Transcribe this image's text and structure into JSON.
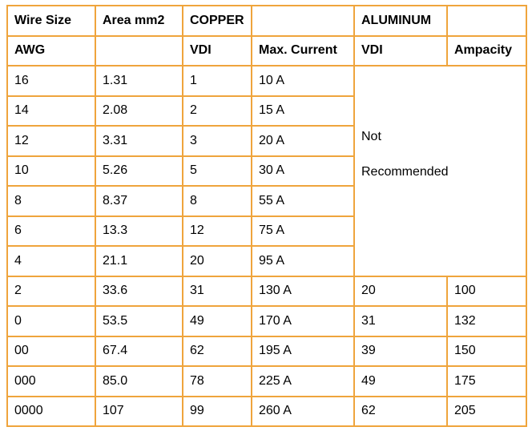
{
  "colors": {
    "border_color": "#EFA43C",
    "not_recommended_bg": "#FBCB9C",
    "text_color": "#000000",
    "page_bg": "#FFFFFF"
  },
  "table": {
    "headers": {
      "row1": [
        "Wire Size",
        "Area mm2",
        "COPPER",
        "",
        "ALUMINUM",
        ""
      ],
      "row2": [
        "AWG",
        "",
        "VDI",
        "Max. Current",
        "VDI",
        "Ampacity"
      ]
    },
    "not_recommended": {
      "line1": "Not",
      "line2": "Recommended"
    },
    "rows": [
      [
        "16",
        "1.31",
        "1",
        "10 A",
        null,
        null
      ],
      [
        "14",
        "2.08",
        "2",
        "15 A",
        null,
        null
      ],
      [
        "12",
        "3.31",
        "3",
        "20 A",
        null,
        null
      ],
      [
        "10",
        "5.26",
        "5",
        "30 A",
        null,
        null
      ],
      [
        "8",
        "8.37",
        "8",
        "55 A",
        null,
        null
      ],
      [
        "6",
        "13.3",
        "12",
        "75 A",
        null,
        null
      ],
      [
        "4",
        "21.1",
        "20",
        "95 A",
        null,
        null
      ],
      [
        "2",
        "33.6",
        "31",
        "130 A",
        "20",
        "100"
      ],
      [
        "0",
        "53.5",
        "49",
        "170 A",
        "31",
        "132"
      ],
      [
        "00",
        "67.4",
        "62",
        "195 A",
        "39",
        "150"
      ],
      [
        "000",
        "85.0",
        "78",
        "225 A",
        "49",
        "175"
      ],
      [
        "0000",
        "107",
        "99",
        "260 A",
        "62",
        "205"
      ]
    ]
  }
}
